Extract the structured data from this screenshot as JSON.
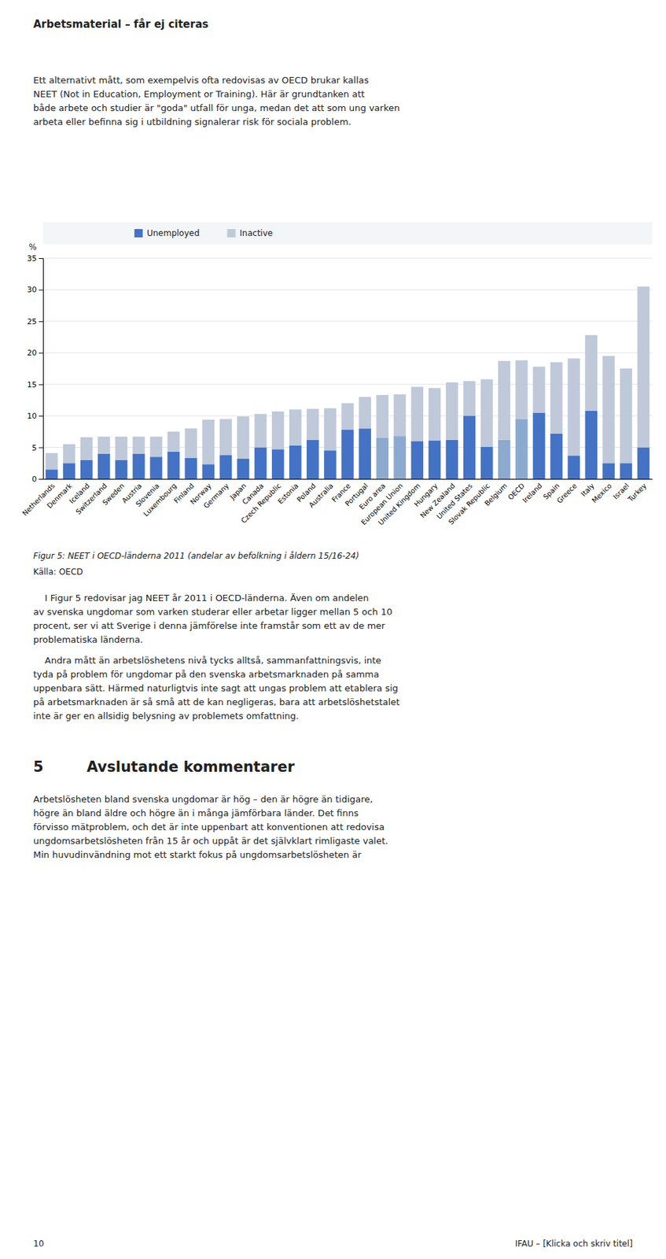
{
  "chart_data": {
    "type": "bar",
    "stacked": true,
    "grid": true,
    "legend": "top",
    "y_label": "%",
    "ylim": [
      0,
      35
    ],
    "yticks": [
      0,
      5,
      10,
      15,
      20,
      25,
      30,
      35
    ],
    "categories": [
      "Netherlands",
      "Denmark",
      "Iceland",
      "Switzerland",
      "Sweden",
      "Austria",
      "Slovenia",
      "Luxembourg",
      "Finland",
      "Norway",
      "Germany",
      "Japan",
      "Canada",
      "Czech Republic",
      "Estonia",
      "Poland",
      "Australia",
      "France",
      "Portugal",
      "Euro area",
      "European Union",
      "United Kingdom",
      "Hungary",
      "New Zealand",
      "United States",
      "Slovak Republic",
      "Belgium",
      "OECD",
      "Ireland",
      "Spain",
      "Greece",
      "Italy",
      "Mexico",
      "Israel",
      "Turkey"
    ],
    "series": [
      {
        "name": "Unemployed",
        "color": "#4472C4",
        "colors": [
          "#4472C4",
          "#4472C4",
          "#4472C4",
          "#4472C4",
          "#4472C4",
          "#4472C4",
          "#4472C4",
          "#4472C4",
          "#4472C4",
          "#4472C4",
          "#4472C4",
          "#4472C4",
          "#4472C4",
          "#4472C4",
          "#4472C4",
          "#4472C4",
          "#4472C4",
          "#4472C4",
          "#4472C4",
          "#8CA9D0",
          "#8CA9D0",
          "#4472C4",
          "#4472C4",
          "#4472C4",
          "#4472C4",
          "#4472C4",
          "#8CA9D0",
          "#8CA9D0",
          "#4472C4",
          "#4472C4",
          "#4472C4",
          "#4472C4",
          "#4472C4",
          "#4472C4",
          "#4472C4"
        ],
        "values": [
          1.5,
          2.5,
          3.0,
          4.0,
          3.0,
          4.0,
          3.5,
          4.3,
          3.3,
          2.3,
          3.8,
          3.2,
          5.0,
          4.7,
          5.3,
          6.2,
          4.5,
          7.8,
          8.0,
          6.5,
          6.8,
          6.0,
          6.1,
          6.2,
          10.0,
          5.1,
          6.2,
          9.5,
          10.5,
          7.2,
          3.7,
          10.8,
          2.5,
          2.5,
          5.0
        ]
      },
      {
        "name": "Inactive",
        "color": "#BFC9D9",
        "values": [
          2.6,
          3.0,
          3.6,
          2.7,
          3.7,
          2.7,
          3.2,
          3.2,
          4.7,
          7.1,
          5.7,
          6.7,
          5.3,
          6.0,
          5.7,
          4.9,
          6.7,
          4.2,
          5.0,
          6.8,
          6.6,
          8.6,
          8.3,
          9.1,
          5.5,
          10.7,
          12.5,
          9.3,
          7.3,
          11.3,
          15.4,
          12.0,
          17.0,
          15.0,
          25.5
        ]
      }
    ]
  },
  "page": {
    "header": "Arbetsmaterial – får ej citeras",
    "paragraphs": [
      [
        "Ett alternativt mått, som exempelvis ofta redovisas av OECD brukar kallas",
        "NEET (Not in Education, Employment or Training). Här är grundtanken att",
        "både arbete och studier är \"goda\" utfall för unga, medan det att som ung varken",
        "arbeta eller befinna sig i utbildning signalerar risk för sociala problem."
      ],
      [
        "    I Figur 5 redovisar jag NEET år 2011 i OECD-länderna. Även om andelen",
        "av svenska ungdomar som varken studerar eller arbetar ligger mellan 5 och 10",
        "procent, ser vi att Sverige i denna jämförelse inte framstår som ett av de mer",
        "problematiska länderna."
      ],
      [
        "    Andra mått än arbetslöshetens nivå tycks alltså, sammanfattningsvis, inte",
        "tyda på problem för ungdomar på den svenska arbetsmarknaden på samma",
        "uppenbara sätt. Härmed naturligtvis inte sagt att ungas problem att etablera sig",
        "på arbetsmarknaden är så små att de kan negligeras, bara att arbetslöshetstalet",
        "inte är ger en allsidig belysning av problemets omfattning."
      ],
      [
        "Arbetslösheten bland svenska ungdomar är hög – den är högre än tidigare,",
        "högre än bland äldre och högre än i många jämförbara länder. Det finns",
        "förvisso mätproblem, och det är inte uppenbart att konventionen att redovisa",
        "ungdomsarbetslösheten från 15 år och uppåt är det självklart rimligaste valet.",
        "Min huvudinvändning mot ett starkt fokus på ungdomsarbetslösheten är"
      ]
    ],
    "caption": "Figur 5: NEET i OECD-länderna 2011 (andelar av befolkning i åldern 15/16-24)",
    "source": "Källa: OECD",
    "section_number": "5",
    "section_title": "Avslutande kommentarer",
    "footer_left": "10",
    "footer_right": "IFAU – [Klicka och skriv titel]"
  }
}
